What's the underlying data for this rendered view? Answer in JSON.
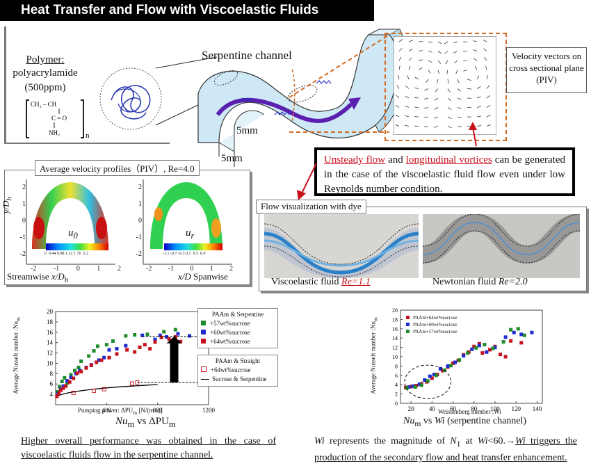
{
  "title": "Heat Transfer and Flow with Viscoelastic Fluids",
  "polymer": {
    "heading": "Polymer",
    "name": "polyacrylamide",
    "conc": "(500ppm)",
    "formula_top": "CH₂ – CH",
    "formula_mid": "C = O",
    "formula_bot": "NH₂",
    "formula_n": "n"
  },
  "channel": {
    "label": "Serpentine channel",
    "dim_height": "5mm",
    "dim_width": "5mm"
  },
  "piv_box": {
    "label": "Velocity vectors on cross sectional plane  (PIV)"
  },
  "callout": {
    "part1": "Unsteady flow",
    "part2": " and ",
    "part3": "longitudinal vortices",
    "part4": " can be generated in the case of the viscoelastic fluid flow even under low Reynolds number condition."
  },
  "profiles": {
    "title": "Average velocity profiles（PIV）, Re=4.0",
    "ylabel": "y/D",
    "ylabel_sub": "h",
    "yticks": [
      "2",
      "1",
      "0",
      "-1",
      "-2"
    ],
    "xticks_left": [
      "-2",
      "-1",
      "0",
      "1",
      "2"
    ],
    "xticks_right": [
      "-2",
      "-1",
      "0",
      "1",
      "2"
    ],
    "u0": "u",
    "u0_sub": "0",
    "ur": "u",
    "ur_sub": "r",
    "cb_left": "0  0.44 0.88 1.32 1.76  2.2",
    "cb_right": "-1.1 -0.7 -0.3 0.1  0.5  0.9",
    "streamwise": "Streamwise",
    "xlabel_left": "x/D",
    "xlabel_left_sub": "h",
    "xlabel_right": "x/D",
    "spanwise": "Spanwise"
  },
  "dye": {
    "label": "Flow visualization with dye",
    "visco_caption": "Viscoelastic fluid",
    "visco_re": "Re=1.1",
    "newt_caption": "Newtonian fluid",
    "newt_re": "Re=2.0"
  },
  "colors": {
    "red": "#c8101a",
    "green": "#1e8c2a",
    "blue": "#1f2bd1",
    "purple": "#6a1fb0",
    "orange": "#d2691e"
  },
  "chart_data": [
    {
      "type": "scatter",
      "ylabel": "Average Nusselt number :Nu",
      "xlabel": "Pumping power: ΔPU",
      "xlabel_unit": "[N/(m·s)]",
      "caption": "Nu",
      "caption_rest": "vs ΔPU",
      "xticks": [
        "400",
        "800",
        "1200"
      ],
      "yticks": [
        "4",
        "6",
        "8",
        "10",
        "12",
        "14",
        "16",
        "18",
        "20"
      ],
      "xlim": [
        0,
        1200
      ],
      "ylim": [
        2,
        20
      ],
      "legend_group1": "PAAm & Serpentine",
      "legend_group2": "PAAm & Straight",
      "series": [
        {
          "name": "+57wt%sucrose",
          "color": "#1e8c2a",
          "marker": "square",
          "points": [
            [
              15,
              4.5
            ],
            [
              30,
              5.5
            ],
            [
              50,
              6.5
            ],
            [
              70,
              7.2
            ],
            [
              90,
              6.2
            ],
            [
              120,
              7.8
            ],
            [
              150,
              8.6
            ],
            [
              180,
              9.2
            ],
            [
              200,
              10.4
            ],
            [
              260,
              11.4
            ],
            [
              300,
              12.4
            ],
            [
              330,
              13.3
            ],
            [
              400,
              13.6
            ],
            [
              450,
              14.3
            ],
            [
              550,
              15.3
            ],
            [
              620,
              15.5
            ],
            [
              720,
              15.6
            ],
            [
              850,
              16.1
            ],
            [
              940,
              16.5
            ]
          ]
        },
        {
          "name": "+60wt%sucrose",
          "color": "#1f2bd1",
          "marker": "square",
          "points": [
            [
              20,
              4.2
            ],
            [
              40,
              5.0
            ],
            [
              60,
              5.6
            ],
            [
              90,
              6.6
            ],
            [
              120,
              7.3
            ],
            [
              160,
              8.0
            ],
            [
              190,
              8.6
            ],
            [
              240,
              9.2
            ],
            [
              280,
              9.7
            ],
            [
              340,
              10.6
            ],
            [
              380,
              11.1
            ],
            [
              420,
              12.6
            ],
            [
              480,
              12.8
            ],
            [
              550,
              13.4
            ],
            [
              680,
              15.4
            ],
            [
              780,
              14.6
            ],
            [
              820,
              15.4
            ],
            [
              870,
              15.1
            ],
            [
              960,
              15.7
            ],
            [
              1050,
              15.3
            ]
          ]
        },
        {
          "name": "+64wt%sucrose",
          "color": "#c8101a",
          "marker": "square",
          "points": [
            [
              10,
              3.6
            ],
            [
              25,
              4.2
            ],
            [
              40,
              4.8
            ],
            [
              60,
              5.2
            ],
            [
              80,
              5.6
            ],
            [
              110,
              6.4
            ],
            [
              140,
              7.1
            ],
            [
              170,
              8.1
            ],
            [
              200,
              8.4
            ],
            [
              240,
              9.1
            ],
            [
              280,
              9.6
            ],
            [
              320,
              10.2
            ],
            [
              360,
              10.6
            ],
            [
              420,
              11.1
            ],
            [
              480,
              11.8
            ],
            [
              560,
              12.6
            ],
            [
              620,
              12.2
            ],
            [
              660,
              13.1
            ],
            [
              700,
              13.6
            ],
            [
              740,
              12.8
            ],
            [
              780,
              14.1
            ],
            [
              830,
              15.0
            ],
            [
              890,
              14.7
            ],
            [
              940,
              15.1
            ],
            [
              980,
              14.2
            ]
          ]
        },
        {
          "name": "+64wt%sucrose",
          "color": "#c8101a",
          "marker": "open-square",
          "points": [
            [
              140,
              4.3
            ],
            [
              300,
              4.7
            ],
            [
              380,
              5.0
            ],
            [
              600,
              6.1
            ],
            [
              640,
              6.3
            ]
          ]
        }
      ],
      "curve_name": "Sucrose & Serpentine",
      "curve": [
        [
          0,
          3.6
        ],
        [
          50,
          4.0
        ],
        [
          100,
          4.3
        ],
        [
          200,
          4.7
        ],
        [
          300,
          5.0
        ],
        [
          400,
          5.25
        ],
        [
          500,
          5.45
        ],
        [
          600,
          5.6
        ],
        [
          700,
          5.75
        ],
        [
          800,
          5.9
        ]
      ],
      "arrow": {
        "x": 930,
        "from": 6.3,
        "to": 15.2
      }
    },
    {
      "type": "scatter",
      "ylabel": "Average Nusselt number :Nu",
      "xlabel": "Weissenberg number :Wi",
      "caption": "Nu",
      "caption_rest": "vs",
      "caption_wi": "Wi",
      "caption_tail": "(serpentine channel)",
      "xticks": [
        "20",
        "40",
        "60",
        "80",
        "100",
        "120",
        "140"
      ],
      "yticks": [
        "0",
        "2",
        "4",
        "6",
        "8",
        "10",
        "12",
        "14",
        "16",
        "18",
        "20"
      ],
      "xlim": [
        10,
        145
      ],
      "ylim": [
        0,
        20
      ],
      "series": [
        {
          "name": "PAAm+64wt%sucrose",
          "color": "#c8101a",
          "marker": "square",
          "points": [
            [
              15,
              3.4
            ],
            [
              20,
              3.6
            ],
            [
              25,
              3.8
            ],
            [
              30,
              4.2
            ],
            [
              35,
              4.6
            ],
            [
              40,
              5.4
            ],
            [
              45,
              6.2
            ],
            [
              50,
              7.0
            ],
            [
              55,
              7.8
            ],
            [
              60,
              8.6
            ],
            [
              65,
              9.2
            ],
            [
              70,
              10.4
            ],
            [
              75,
              11.0
            ],
            [
              80,
              12.2
            ],
            [
              85,
              12.8
            ],
            [
              88,
              10.8
            ],
            [
              95,
              11.5
            ],
            [
              100,
              12.2
            ],
            [
              105,
              10.5
            ],
            [
              110,
              10.0
            ],
            [
              115,
              13.4
            ],
            [
              125,
              13.0
            ]
          ]
        },
        {
          "name": "PAAm+60wt%sucrose",
          "color": "#1f2bd1",
          "marker": "square",
          "points": [
            [
              18,
              3.5
            ],
            [
              22,
              3.7
            ],
            [
              28,
              4.1
            ],
            [
              33,
              5.0
            ],
            [
              38,
              5.8
            ],
            [
              42,
              6.2
            ],
            [
              48,
              7.4
            ],
            [
              55,
              8.0
            ],
            [
              62,
              8.8
            ],
            [
              70,
              10.2
            ],
            [
              78,
              11.6
            ],
            [
              85,
              12.4
            ],
            [
              92,
              11.0
            ],
            [
              100,
              12.0
            ],
            [
              110,
              14.2
            ],
            [
              118,
              15.2
            ],
            [
              125,
              14.8
            ],
            [
              135,
              15.2
            ]
          ]
        },
        {
          "name": "PAAm+57wt%sucrose",
          "color": "#1e8c2a",
          "marker": "square",
          "points": [
            [
              16,
              3.3
            ],
            [
              24,
              3.5
            ],
            [
              30,
              3.9
            ],
            [
              36,
              4.8
            ],
            [
              44,
              6.0
            ],
            [
              52,
              7.1
            ],
            [
              58,
              8.1
            ],
            [
              66,
              9.3
            ],
            [
              74,
              10.8
            ],
            [
              82,
              11.9
            ],
            [
              90,
              12.6
            ],
            [
              98,
              11.8
            ],
            [
              108,
              13.2
            ],
            [
              115,
              15.8
            ],
            [
              122,
              16.0
            ],
            [
              128,
              14.6
            ]
          ]
        }
      ],
      "ellipse": {
        "cx": 36,
        "cy": 4.6,
        "rx": 22,
        "ry": 3.6
      }
    }
  ],
  "bottom_left": "Higher overall performance was obtained in the case of viscoelastic fluids flow in the serpentine channel.",
  "bottom_right": {
    "wi": "Wi",
    "part1": " represents the magnitude of ",
    "n1": "N",
    "n1_sub": "1",
    "part2": " at ",
    "wi2": "Wi",
    "part3": "<60.→",
    "wi3": "Wi",
    "part4": " triggers the production of the secondary flow and heat transfer enhancement."
  }
}
